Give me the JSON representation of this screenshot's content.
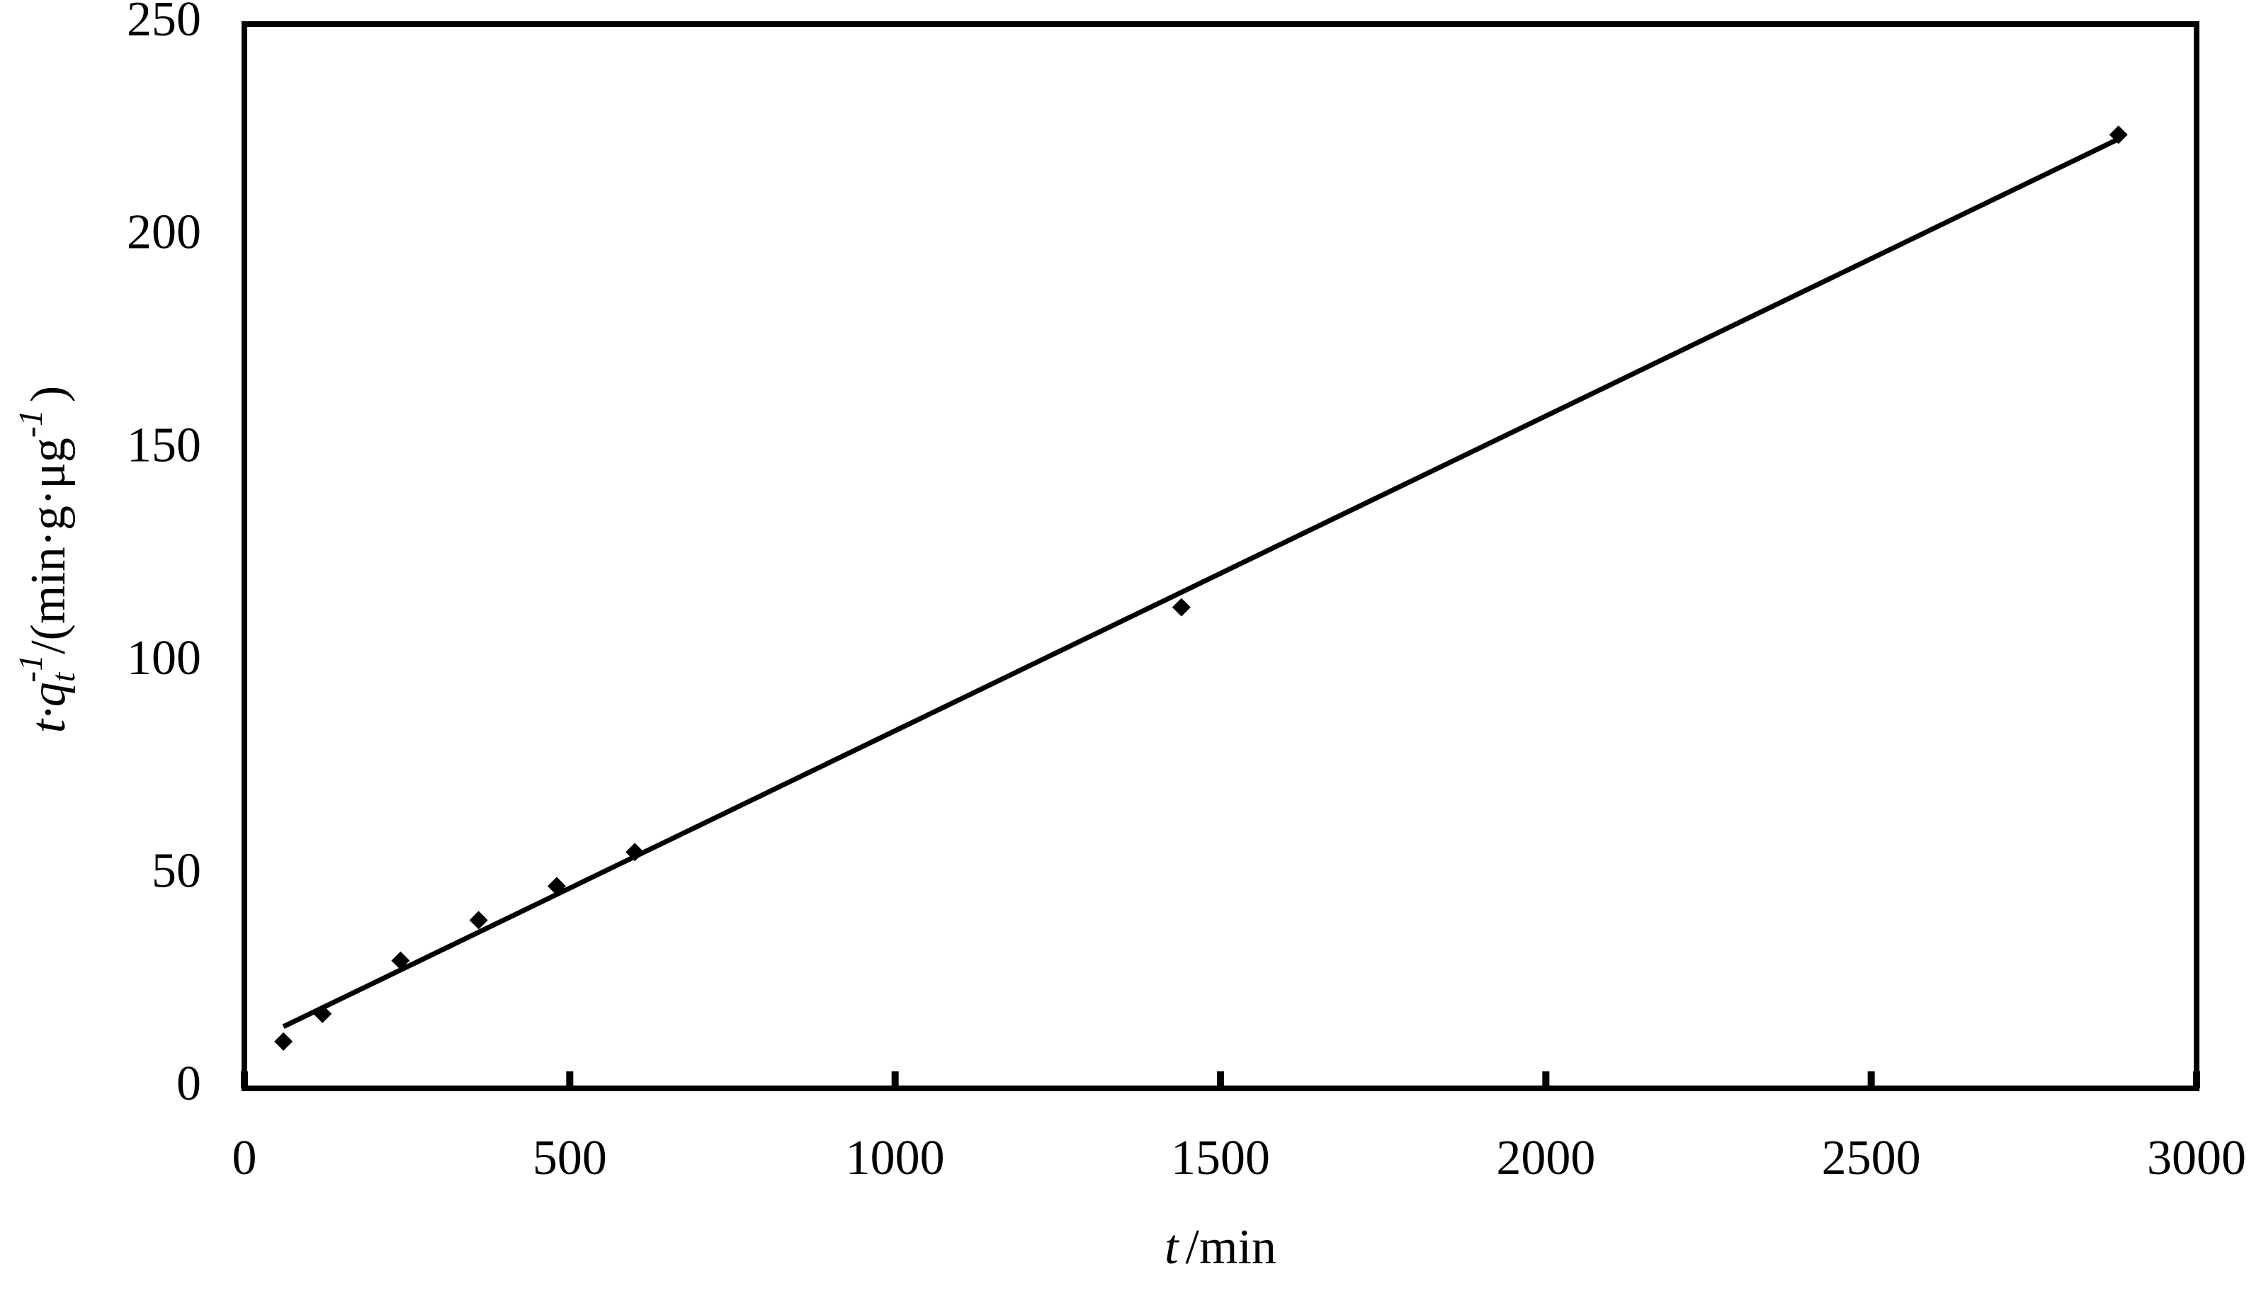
{
  "chart_data": {
    "type": "scatter",
    "xlabel": [
      "t",
      "/min"
    ],
    "ylabel": [
      "t·q",
      "t",
      "-1",
      "/(min·g·μg",
      "-1",
      ")"
    ],
    "xlim": [
      0,
      3000
    ],
    "xticks": [
      0,
      500,
      1000,
      1500,
      2000,
      2500,
      3000
    ],
    "ylim": [
      0,
      250
    ],
    "yticks": [
      0,
      50,
      100,
      150,
      200,
      250
    ],
    "grid": false,
    "series": [
      {
        "color": "#000000",
        "marker": "diamond",
        "x": [
          60,
          120,
          240,
          360,
          480,
          600,
          1440,
          2880
        ],
        "values": [
          11,
          17.5,
          30,
          39.5,
          47.5,
          55.5,
          113,
          224
        ]
      }
    ],
    "trendline": {
      "color": "#000000",
      "x": [
        60,
        2880
      ],
      "y": [
        14.5,
        223
      ]
    }
  }
}
